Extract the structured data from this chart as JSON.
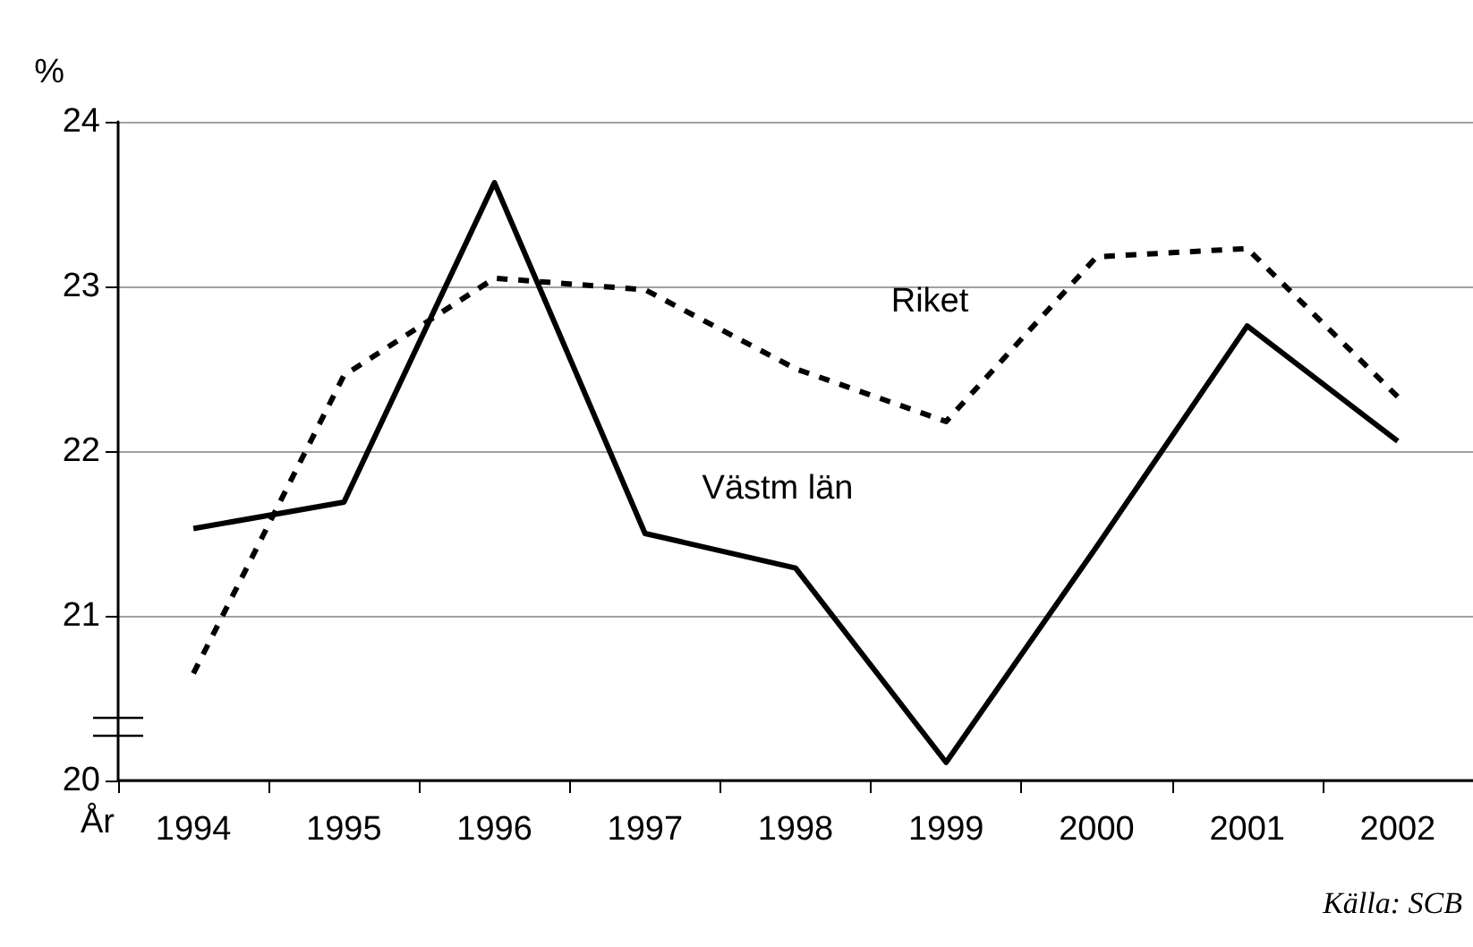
{
  "chart_data": {
    "type": "line",
    "xlabel": "År",
    "ylabel": "%",
    "annotations": [
      "Källa: SCB"
    ],
    "categories": [
      "1994",
      "1995",
      "1996",
      "1997",
      "1998",
      "1999",
      "2000",
      "2001",
      "2002"
    ],
    "ylim": [
      20,
      24
    ],
    "yticks": [
      20,
      21,
      22,
      23,
      24
    ],
    "grid": "y",
    "marker": "none",
    "series": [
      {
        "name": "Västm län",
        "color": "#000000",
        "line_style": "solid",
        "values": [
          21.53,
          21.69,
          23.63,
          21.5,
          21.29,
          20.11,
          21.42,
          22.76,
          22.06
        ]
      },
      {
        "name": "Riket",
        "color": "#000000",
        "line_style": "dashed",
        "values": [
          20.65,
          22.46,
          23.05,
          22.98,
          22.5,
          22.18,
          23.18,
          23.23,
          22.33
        ]
      }
    ]
  }
}
